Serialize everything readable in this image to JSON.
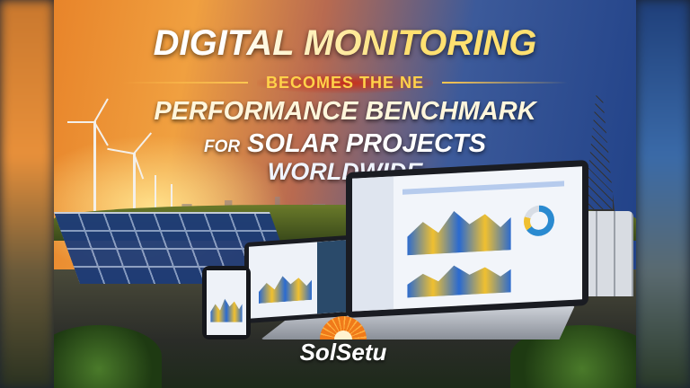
{
  "headline": {
    "line1": "DIGITAL MONITORING",
    "line2": "BECOMES THE NE",
    "line3": "PERFORMANCE BENCHMARK",
    "line4_prefix": "FOR",
    "line4": "SOLAR PROJECTS",
    "line5": "WORLDWIDE"
  },
  "brand": {
    "name": "SolSetu",
    "logo_icon": "sun-icon"
  },
  "colors": {
    "headline_gold": "#ffd24a",
    "accent_red": "#c8301a",
    "brand_orange": "#f07a1a"
  }
}
